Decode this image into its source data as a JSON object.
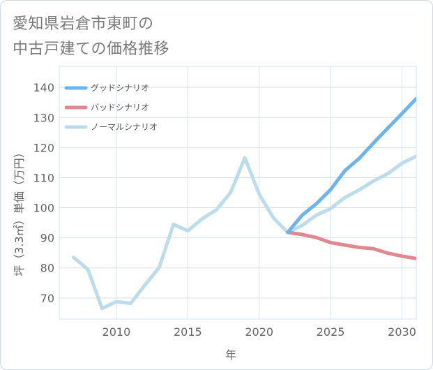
{
  "chart_data": {
    "type": "line",
    "title": "愛知県岩倉市東町の中古戸建ての価格推移",
    "title_lines": [
      "愛知県岩倉市東町の",
      "中古戸建ての価格推移"
    ],
    "xlabel": "年",
    "ylabel": "坪（3.3㎡）単価（万円）",
    "xlim": [
      2006,
      2031
    ],
    "ylim": [
      63,
      147
    ],
    "xticks": [
      2010,
      2015,
      2020,
      2025,
      2030
    ],
    "yticks": [
      70,
      80,
      90,
      100,
      110,
      120,
      130,
      140
    ],
    "grid": true,
    "legend_position": "top-left",
    "series": [
      {
        "name": "グッドシナリオ",
        "color": "#6cb4ec",
        "x": [
          2022,
          2023,
          2024,
          2025,
          2026,
          2027,
          2028,
          2029,
          2030,
          2031
        ],
        "values": [
          91.8,
          97.5,
          101.3,
          106.0,
          112.3,
          116.4,
          121.5,
          126.4,
          131.3,
          136.3
        ]
      },
      {
        "name": "バッドシナリオ",
        "color": "#e08890",
        "x": [
          2022,
          2023,
          2024,
          2025,
          2026,
          2027,
          2028,
          2029,
          2030,
          2031
        ],
        "values": [
          91.8,
          91.1,
          90.1,
          88.4,
          87.6,
          86.8,
          86.4,
          84.9,
          83.9,
          83.1
        ]
      },
      {
        "name": "ノーマルシナリオ",
        "color": "#bcdcea",
        "x": [
          2007,
          2008,
          2009,
          2010,
          2011,
          2012,
          2013,
          2014,
          2015,
          2016,
          2017,
          2018,
          2019,
          2020,
          2021,
          2022,
          2023,
          2024,
          2025,
          2026,
          2027,
          2028,
          2029,
          2030,
          2031
        ],
        "values": [
          83.5,
          79.5,
          66.5,
          68.8,
          68.2,
          74.3,
          80.2,
          94.5,
          92.3,
          96.3,
          99.3,
          105.1,
          116.6,
          104.5,
          96.6,
          91.8,
          94.1,
          97.5,
          99.7,
          103.4,
          105.9,
          108.9,
          111.3,
          114.8,
          117.1
        ]
      }
    ]
  }
}
